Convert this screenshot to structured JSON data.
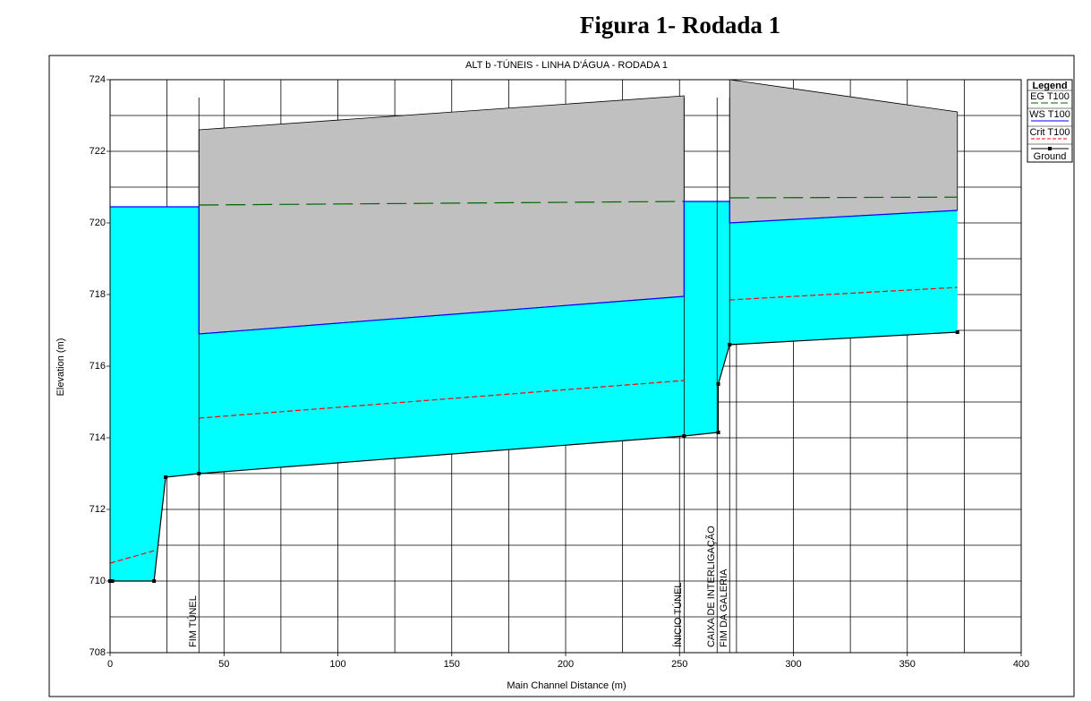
{
  "figure_caption": "Figura 1-  Rodada 1",
  "chart_data": {
    "type": "line",
    "title": "ALT b -TÚNEIS   - LINHA D'ÁGUA - RODADA 1",
    "x_label": "Main Channel Distance (m)",
    "y_label": "Elevation (m)",
    "xlim": [
      0,
      400
    ],
    "ylim": [
      708,
      724
    ],
    "xticks": [
      0,
      50,
      100,
      150,
      200,
      250,
      300,
      350,
      400
    ],
    "yticks": [
      708,
      710,
      712,
      714,
      716,
      718,
      720,
      722,
      724
    ],
    "xgrid_minor": [
      25,
      75,
      125,
      175,
      225,
      275,
      325,
      375
    ],
    "ygrid_minor": [
      709,
      711,
      713,
      715,
      717,
      719,
      721,
      723
    ],
    "grid": true,
    "legend_title": "Legend",
    "legend_position": "right",
    "water_color": "#00ffff",
    "structure_color": "#c0c0c0",
    "series": [
      {
        "name": "EG  T100",
        "color": "#006400",
        "style": "dashed",
        "x": [
          39,
          252,
          null,
          272,
          372
        ],
        "values": [
          720.5,
          720.6,
          null,
          720.7,
          720.72
        ]
      },
      {
        "name": "WS  T100",
        "color": "#0000ff",
        "style": "solid",
        "x": [
          0,
          39,
          39,
          252,
          252,
          272,
          272,
          372
        ],
        "values": [
          720.45,
          720.45,
          716.9,
          717.95,
          720.6,
          720.6,
          720.0,
          720.35
        ]
      },
      {
        "name": "Crit  T100",
        "color": "#ff0000",
        "style": "dotdash",
        "x": [
          0,
          19.5,
          null,
          39,
          252,
          null,
          272,
          372
        ],
        "values": [
          710.5,
          710.85,
          null,
          714.55,
          715.6,
          null,
          717.85,
          718.2
        ]
      },
      {
        "name": "Ground",
        "color": "#000000",
        "style": "markers",
        "x": [
          0,
          1,
          19.3,
          24.4,
          39,
          252,
          267,
          267,
          272,
          372
        ],
        "values": [
          710,
          710,
          710,
          712.9,
          713.0,
          714.05,
          714.15,
          715.5,
          716.6,
          716.95
        ]
      }
    ],
    "structures": [
      {
        "x": [
          39,
          252
        ],
        "top": [
          722.6,
          723.55
        ]
      },
      {
        "x": [
          272,
          372
        ],
        "top": [
          724.0,
          723.1
        ]
      }
    ],
    "annotations": [
      {
        "x": 39,
        "text": "FIM TÚNEL"
      },
      {
        "x": 252,
        "text": "ÍNICIO TÚNEL"
      },
      {
        "x": 266.5,
        "text": "CAIXA DE INTERLIGAÇÃO"
      },
      {
        "x": 272,
        "text": "FIM DA GALERIA"
      }
    ]
  }
}
